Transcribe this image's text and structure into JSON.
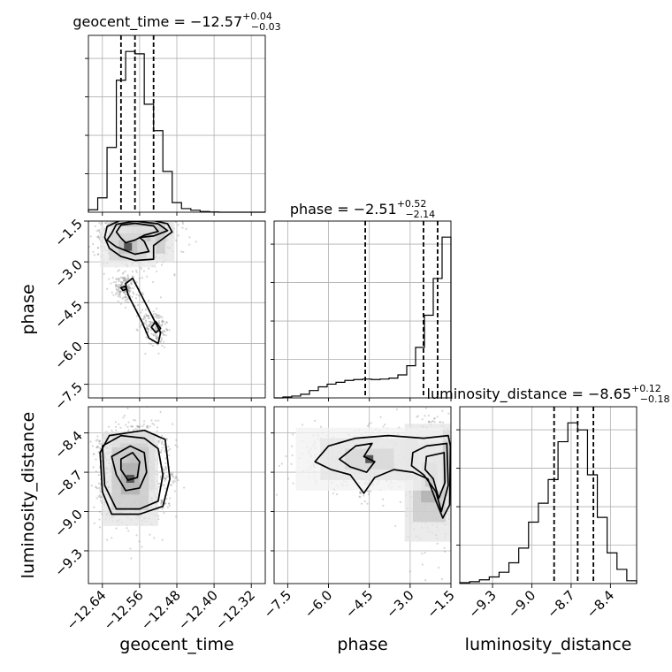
{
  "chart_data": {
    "type": "corner",
    "title": "",
    "grid": true,
    "parameters": [
      {
        "name": "geocent_time",
        "axis_label": "geocent_time",
        "title": {
          "prefix": "geocent_time = ",
          "median": "−12.57",
          "plus": "+0.04",
          "minus": "−0.03"
        },
        "range": [
          -12.67,
          -12.29
        ],
        "ticks": [
          -12.64,
          -12.56,
          -12.48,
          -12.4,
          -12.32
        ],
        "tick_labels": [
          "−12.64",
          "−12.56",
          "−12.48",
          "−12.40",
          "−12.32"
        ],
        "quantiles": [
          -12.6,
          -12.57,
          -12.53
        ],
        "hist": {
          "edges": [
            -12.67,
            -12.65,
            -12.63,
            -12.61,
            -12.59,
            -12.57,
            -12.55,
            -12.53,
            -12.51,
            -12.49,
            -12.47,
            -12.45,
            -12.43,
            -12.41,
            -12.39,
            -12.37,
            -12.35,
            -12.33,
            -12.31,
            -12.29
          ],
          "counts": [
            1,
            6,
            27,
            55,
            67,
            66,
            45,
            34,
            17,
            4,
            1.5,
            0.8,
            0.3,
            0.1,
            0,
            0,
            0,
            0,
            0
          ]
        }
      },
      {
        "name": "phase",
        "axis_label": "phase",
        "title": {
          "prefix": "phase = ",
          "median": "−2.51",
          "plus": "+0.52",
          "minus": "−2.14"
        },
        "range": [
          -8.0,
          -1.5
        ],
        "ticks": [
          -7.5,
          -6.0,
          -4.5,
          -3.0,
          -1.5
        ],
        "tick_labels": [
          "−7.5",
          "−6.0",
          "−4.5",
          "−3.0",
          "−1.5"
        ],
        "quantiles": [
          -4.65,
          -2.51,
          -1.99
        ],
        "hist": {
          "edges": [
            -8.0,
            -7.675,
            -7.35,
            -7.025,
            -6.7,
            -6.375,
            -6.05,
            -5.725,
            -5.4,
            -5.075,
            -4.75,
            -4.425,
            -4.1,
            -3.775,
            -3.45,
            -3.125,
            -2.8,
            -2.475,
            -2.15,
            -1.825,
            -1.5
          ],
          "counts": [
            0,
            0.4,
            0.8,
            1.6,
            3.2,
            4.8,
            6,
            6.8,
            7.6,
            8,
            8.2,
            8,
            8.2,
            8.6,
            10,
            14,
            22,
            36,
            52,
            70
          ]
        }
      },
      {
        "name": "luminosity_distance",
        "axis_label": "luminosity_distance",
        "title": {
          "prefix": "luminosity_distance = ",
          "median": "−8.65",
          "plus": "+0.12",
          "minus": "−0.18"
        },
        "range": [
          -9.55,
          -8.2
        ],
        "ticks": [
          -9.3,
          -9.0,
          -8.7,
          -8.4
        ],
        "tick_labels": [
          "−9.3",
          "−9.0",
          "−8.7",
          "−8.4"
        ],
        "quantiles": [
          -8.83,
          -8.65,
          -8.53
        ],
        "hist": {
          "edges": [
            -9.55,
            -9.475,
            -9.4,
            -9.325,
            -9.25,
            -9.175,
            -9.1,
            -9.025,
            -8.95,
            -8.875,
            -8.8,
            -8.725,
            -8.65,
            -8.575,
            -8.5,
            -8.425,
            -8.35,
            -8.275,
            -8.2
          ],
          "counts": [
            0.4,
            0.8,
            1.6,
            2.8,
            4.8,
            8.8,
            15,
            26,
            34,
            44,
            60,
            68,
            65,
            46,
            28,
            13,
            6,
            1.2
          ]
        }
      }
    ],
    "pairs": [
      {
        "x": "geocent_time",
        "y": "phase",
        "density_peaks": [
          {
            "x": -12.57,
            "y": -1.85,
            "sx": 0.018,
            "sy": 0.22,
            "w": 1.0
          },
          {
            "x": -12.545,
            "y": -2.1,
            "sx": 0.02,
            "sy": 0.3,
            "w": 0.5
          },
          {
            "x": -12.585,
            "y": -2.45,
            "sx": 0.02,
            "sy": 0.25,
            "w": 0.4
          }
        ],
        "contours": [
          [
            [
              -12.62,
              -1.95
            ],
            [
              -12.61,
              -1.62
            ],
            [
              -12.57,
              -1.5
            ],
            [
              -12.52,
              -1.6
            ],
            [
              -12.5,
              -1.85
            ],
            [
              -12.53,
              -2.05
            ],
            [
              -12.56,
              -2.1
            ],
            [
              -12.55,
              -2.25
            ],
            [
              -12.54,
              -2.62
            ],
            [
              -12.57,
              -2.72
            ],
            [
              -12.61,
              -2.45
            ],
            [
              -12.63,
              -2.2
            ]
          ],
          [
            [
              -12.61,
              -1.9
            ],
            [
              -12.6,
              -1.65
            ],
            [
              -12.57,
              -1.58
            ],
            [
              -12.53,
              -1.68
            ],
            [
              -12.52,
              -1.88
            ],
            [
              -12.55,
              -2.02
            ],
            [
              -12.57,
              -2.2
            ],
            [
              -12.59,
              -2.3
            ],
            [
              -12.6,
              -2.12
            ]
          ],
          [
            [
              -12.635,
              -2.1
            ],
            [
              -12.63,
              -1.7
            ],
            [
              -12.6,
              -1.46
            ],
            [
              -12.54,
              -1.44
            ],
            [
              -12.5,
              -1.6
            ],
            [
              -12.49,
              -1.9
            ],
            [
              -12.51,
              -2.15
            ],
            [
              -12.53,
              -2.4
            ],
            [
              -12.53,
              -2.9
            ],
            [
              -12.57,
              -2.95
            ],
            [
              -12.6,
              -2.8
            ],
            [
              -12.625,
              -2.5
            ]
          ],
          [
            [
              -12.575,
              -3.6
            ],
            [
              -12.56,
              -4.1
            ],
            [
              -12.545,
              -4.6
            ],
            [
              -12.53,
              -5.1
            ],
            [
              -12.515,
              -5.6
            ],
            [
              -12.52,
              -6.0
            ],
            [
              -12.54,
              -5.8
            ],
            [
              -12.555,
              -5.2
            ],
            [
              -12.57,
              -4.7
            ],
            [
              -12.585,
              -4.2
            ],
            [
              -12.59,
              -3.8
            ]
          ],
          [
            [
              -12.525,
              -5.2
            ],
            [
              -12.515,
              -5.45
            ],
            [
              -12.525,
              -5.6
            ],
            [
              -12.535,
              -5.4
            ]
          ],
          [
            [
              -12.592,
              -3.9
            ],
            [
              -12.588,
              -4.0
            ],
            [
              -12.596,
              -4.05
            ],
            [
              -12.6,
              -3.95
            ]
          ]
        ],
        "scatter_seed": 11
      },
      {
        "x": "geocent_time",
        "y": "luminosity_distance",
        "density_peaks": [
          {
            "x": -12.572,
            "y": -8.62,
            "sx": 0.015,
            "sy": 0.07,
            "w": 1.0
          },
          {
            "x": -12.58,
            "y": -8.75,
            "sx": 0.02,
            "sy": 0.12,
            "w": 0.5
          }
        ],
        "contours": [
          [
            [
              -12.62,
              -8.58
            ],
            [
              -12.58,
              -8.5
            ],
            [
              -12.55,
              -8.55
            ],
            [
              -12.545,
              -8.7
            ],
            [
              -12.56,
              -8.82
            ],
            [
              -12.59,
              -8.84
            ],
            [
              -12.61,
              -8.72
            ]
          ],
          [
            [
              -12.6,
              -8.6
            ],
            [
              -12.575,
              -8.55
            ],
            [
              -12.56,
              -8.62
            ],
            [
              -12.565,
              -8.74
            ],
            [
              -12.585,
              -8.76
            ],
            [
              -12.6,
              -8.68
            ]
          ],
          [
            [
              -12.64,
              -8.5
            ],
            [
              -12.6,
              -8.42
            ],
            [
              -12.55,
              -8.44
            ],
            [
              -12.52,
              -8.52
            ],
            [
              -12.51,
              -8.72
            ],
            [
              -12.52,
              -8.92
            ],
            [
              -12.56,
              -8.98
            ],
            [
              -12.61,
              -8.98
            ],
            [
              -12.635,
              -8.8
            ]
          ],
          [
            [
              -12.645,
              -8.55
            ],
            [
              -12.625,
              -8.42
            ],
            [
              -12.55,
              -8.38
            ],
            [
              -12.505,
              -8.45
            ],
            [
              -12.495,
              -8.75
            ],
            [
              -12.51,
              -8.96
            ],
            [
              -12.56,
              -9.02
            ],
            [
              -12.62,
              -9.02
            ],
            [
              -12.64,
              -8.85
            ]
          ]
        ],
        "scatter_seed": 23
      },
      {
        "x": "phase",
        "y": "luminosity_distance",
        "density_peaks": [
          {
            "x": -2.0,
            "y": -8.62,
            "sx": 0.25,
            "sy": 0.08,
            "w": 1.0
          },
          {
            "x": -2.3,
            "y": -8.78,
            "sx": 0.3,
            "sy": 0.15,
            "w": 0.5
          },
          {
            "x": -4.5,
            "y": -8.6,
            "sx": 0.9,
            "sy": 0.08,
            "w": 0.25
          }
        ],
        "contours": [
          [
            [
              -6.5,
              -8.62
            ],
            [
              -6.0,
              -8.5
            ],
            [
              -5.0,
              -8.44
            ],
            [
              -3.8,
              -8.42
            ],
            [
              -2.5,
              -8.44
            ],
            [
              -1.6,
              -8.42
            ],
            [
              -1.52,
              -8.5
            ],
            [
              -1.55,
              -8.95
            ],
            [
              -1.8,
              -9.05
            ],
            [
              -2.05,
              -8.92
            ],
            [
              -2.35,
              -8.75
            ],
            [
              -2.9,
              -8.7
            ],
            [
              -3.6,
              -8.68
            ],
            [
              -4.3,
              -8.74
            ],
            [
              -4.7,
              -8.86
            ],
            [
              -5.2,
              -8.72
            ],
            [
              -5.9,
              -8.68
            ]
          ],
          [
            [
              -5.6,
              -8.6
            ],
            [
              -5.0,
              -8.5
            ],
            [
              -4.4,
              -8.48
            ],
            [
              -4.7,
              -8.58
            ],
            [
              -4.3,
              -8.62
            ],
            [
              -4.6,
              -8.7
            ],
            [
              -5.2,
              -8.66
            ]
          ],
          [
            [
              -2.9,
              -8.55
            ],
            [
              -2.4,
              -8.5
            ],
            [
              -1.65,
              -8.48
            ],
            [
              -1.6,
              -8.8
            ],
            [
              -1.85,
              -9.0
            ],
            [
              -2.05,
              -8.85
            ],
            [
              -2.5,
              -8.72
            ],
            [
              -2.95,
              -8.65
            ]
          ],
          [
            [
              -2.4,
              -8.58
            ],
            [
              -1.75,
              -8.55
            ],
            [
              -1.72,
              -8.78
            ],
            [
              -1.95,
              -8.9
            ],
            [
              -2.15,
              -8.75
            ],
            [
              -2.45,
              -8.68
            ]
          ]
        ],
        "scatter_seed": 37
      }
    ]
  }
}
